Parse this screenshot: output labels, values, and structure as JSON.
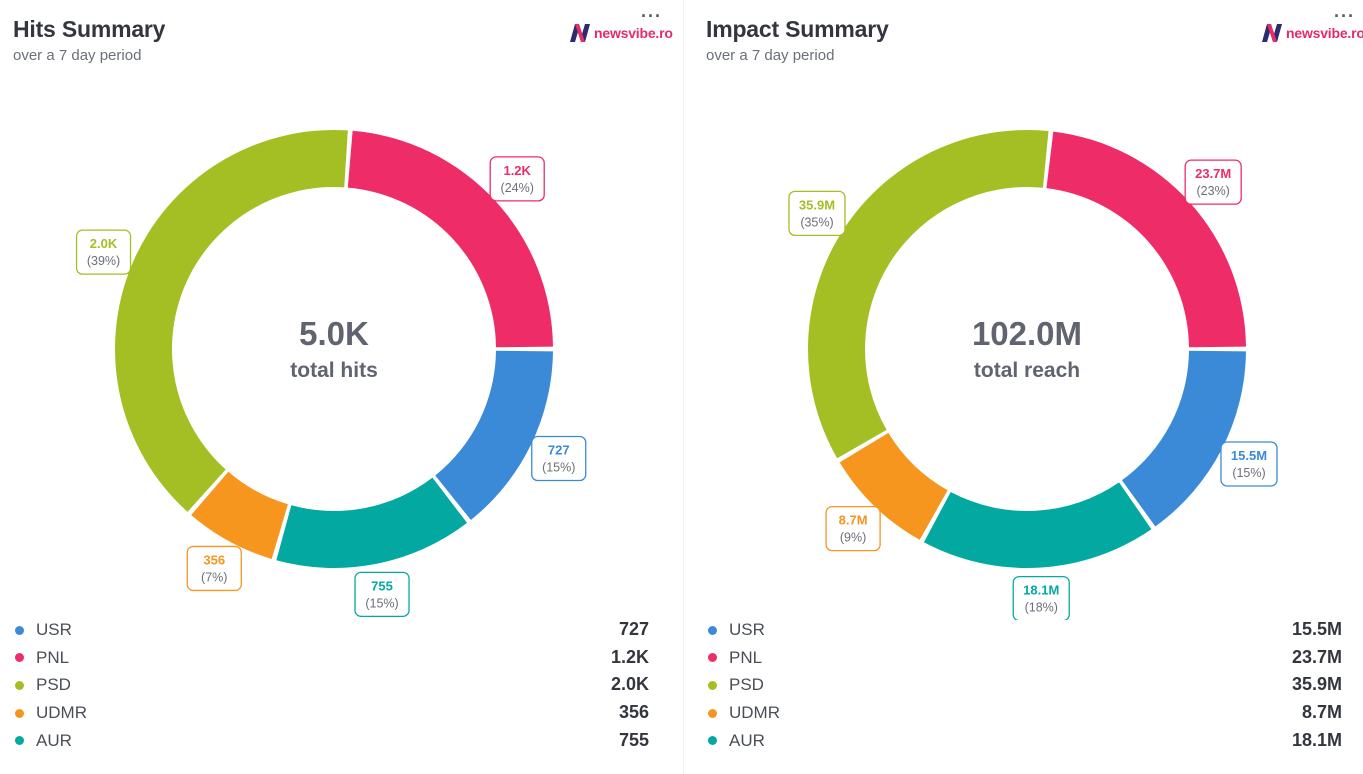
{
  "colors": {
    "USR": "#3b8ad8",
    "PNL": "#ee2c68",
    "PSD": "#a4bf24",
    "UDMR": "#f6961f",
    "AUR": "#03a9a0"
  },
  "logo": {
    "text": "newsvibe.ro",
    "icon": "newsvibe-n-logo"
  },
  "more_label": "···",
  "chart_data": [
    {
      "type": "pie",
      "title": "Hits Summary",
      "subtitle": "over a 7 day period",
      "center_value": "5.0K",
      "center_label": "total hits",
      "series": [
        {
          "name": "USR",
          "value": 727,
          "value_label": "727",
          "percent_label": "(15%)"
        },
        {
          "name": "AUR",
          "value": 755,
          "value_label": "755",
          "percent_label": "(15%)"
        },
        {
          "name": "UDMR",
          "value": 356,
          "value_label": "356",
          "percent_label": "(7%)"
        },
        {
          "name": "PSD",
          "value": 2000,
          "value_label": "2.0K",
          "percent_label": "(39%)"
        },
        {
          "name": "PNL",
          "value": 1200,
          "value_label": "1.2K",
          "percent_label": "(24%)"
        }
      ],
      "legend": [
        {
          "name": "USR",
          "value": "727"
        },
        {
          "name": "PNL",
          "value": "1.2K"
        },
        {
          "name": "PSD",
          "value": "2.0K"
        },
        {
          "name": "UDMR",
          "value": "356"
        },
        {
          "name": "AUR",
          "value": "755"
        }
      ]
    },
    {
      "type": "pie",
      "title": "Impact Summary",
      "subtitle": "over a 7 day period",
      "center_value": "102.0M",
      "center_label": "total reach",
      "series": [
        {
          "name": "USR",
          "value": 15.5,
          "value_label": "15.5M",
          "percent_label": "(15%)"
        },
        {
          "name": "AUR",
          "value": 18.1,
          "value_label": "18.1M",
          "percent_label": "(18%)"
        },
        {
          "name": "UDMR",
          "value": 8.7,
          "value_label": "8.7M",
          "percent_label": "(9%)"
        },
        {
          "name": "PSD",
          "value": 35.9,
          "value_label": "35.9M",
          "percent_label": "(35%)"
        },
        {
          "name": "PNL",
          "value": 23.7,
          "value_label": "23.7M",
          "percent_label": "(23%)"
        }
      ],
      "legend": [
        {
          "name": "USR",
          "value": "15.5M"
        },
        {
          "name": "PNL",
          "value": "23.7M"
        },
        {
          "name": "PSD",
          "value": "35.9M"
        },
        {
          "name": "UDMR",
          "value": "8.7M"
        },
        {
          "name": "AUR",
          "value": "18.1M"
        }
      ]
    }
  ]
}
